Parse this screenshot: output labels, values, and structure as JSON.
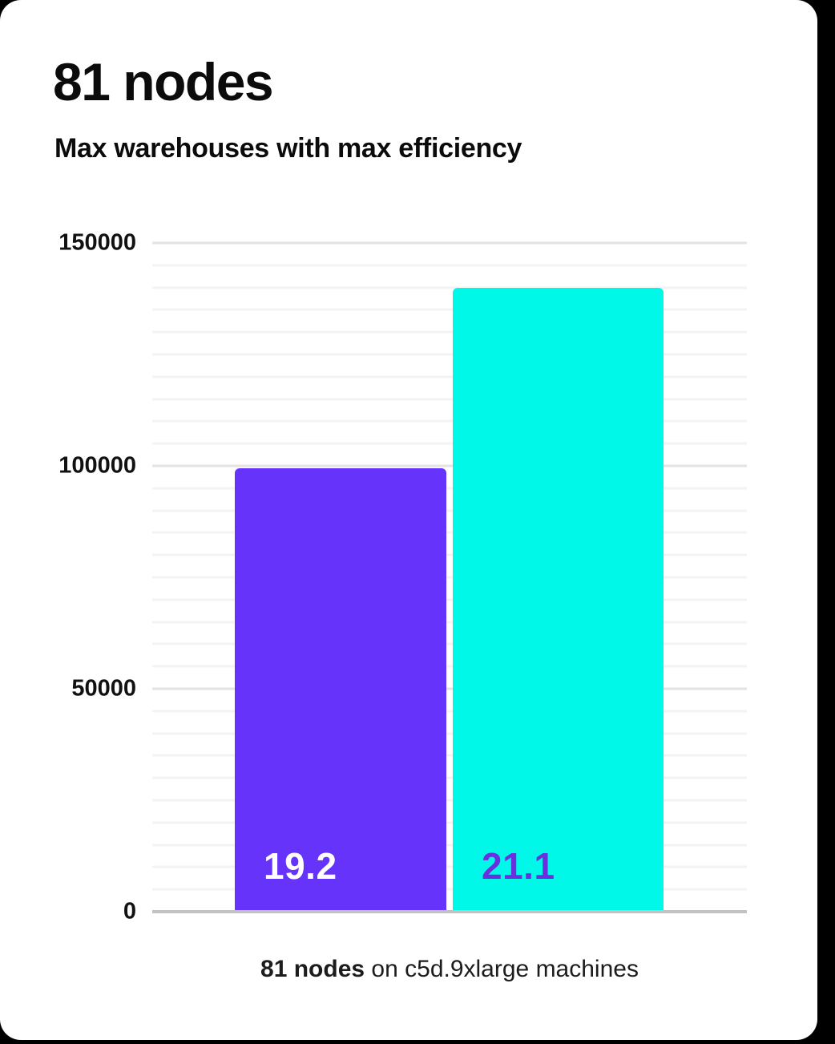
{
  "header": {
    "title": "81 nodes",
    "subtitle": "Max warehouses with max efficiency"
  },
  "caption": {
    "bold_part": "81 nodes",
    "rest_part": " on c5d.9xlarge machines"
  },
  "colors": {
    "background": "#000000",
    "card": "#ffffff",
    "purple_bar": "#6633fa",
    "cyan_bar": "#00f8e8",
    "purple_label_on_cyan": "#6a30de",
    "white_label": "#ffffff",
    "major_grid": "#e3e3e3",
    "minor_grid": "#f3f3f3",
    "axis": "#c2c2c2",
    "text": "#0b0b0b"
  },
  "chart_data": {
    "type": "bar",
    "title": "81 nodes",
    "subtitle": "Max warehouses with max efficiency",
    "categories": [
      "19.2",
      "21.1"
    ],
    "values": [
      99500,
      140000
    ],
    "series": [
      {
        "name": "Max warehouses with max efficiency",
        "values": [
          99500,
          140000
        ]
      }
    ],
    "bars": [
      {
        "label": "19.2",
        "value": 99500,
        "color": "#6633fa",
        "label_color": "#ffffff"
      },
      {
        "label": "21.1",
        "value": 140000,
        "color": "#00f8e8",
        "label_color": "#6a30de"
      }
    ],
    "xlabel": "81 nodes on c5d.9xlarge machines",
    "ylabel": "",
    "ylim": [
      0,
      150000
    ],
    "yticks": [
      0,
      50000,
      100000,
      150000
    ],
    "minor_grid_step": 5000,
    "grid": true,
    "legend": false
  }
}
